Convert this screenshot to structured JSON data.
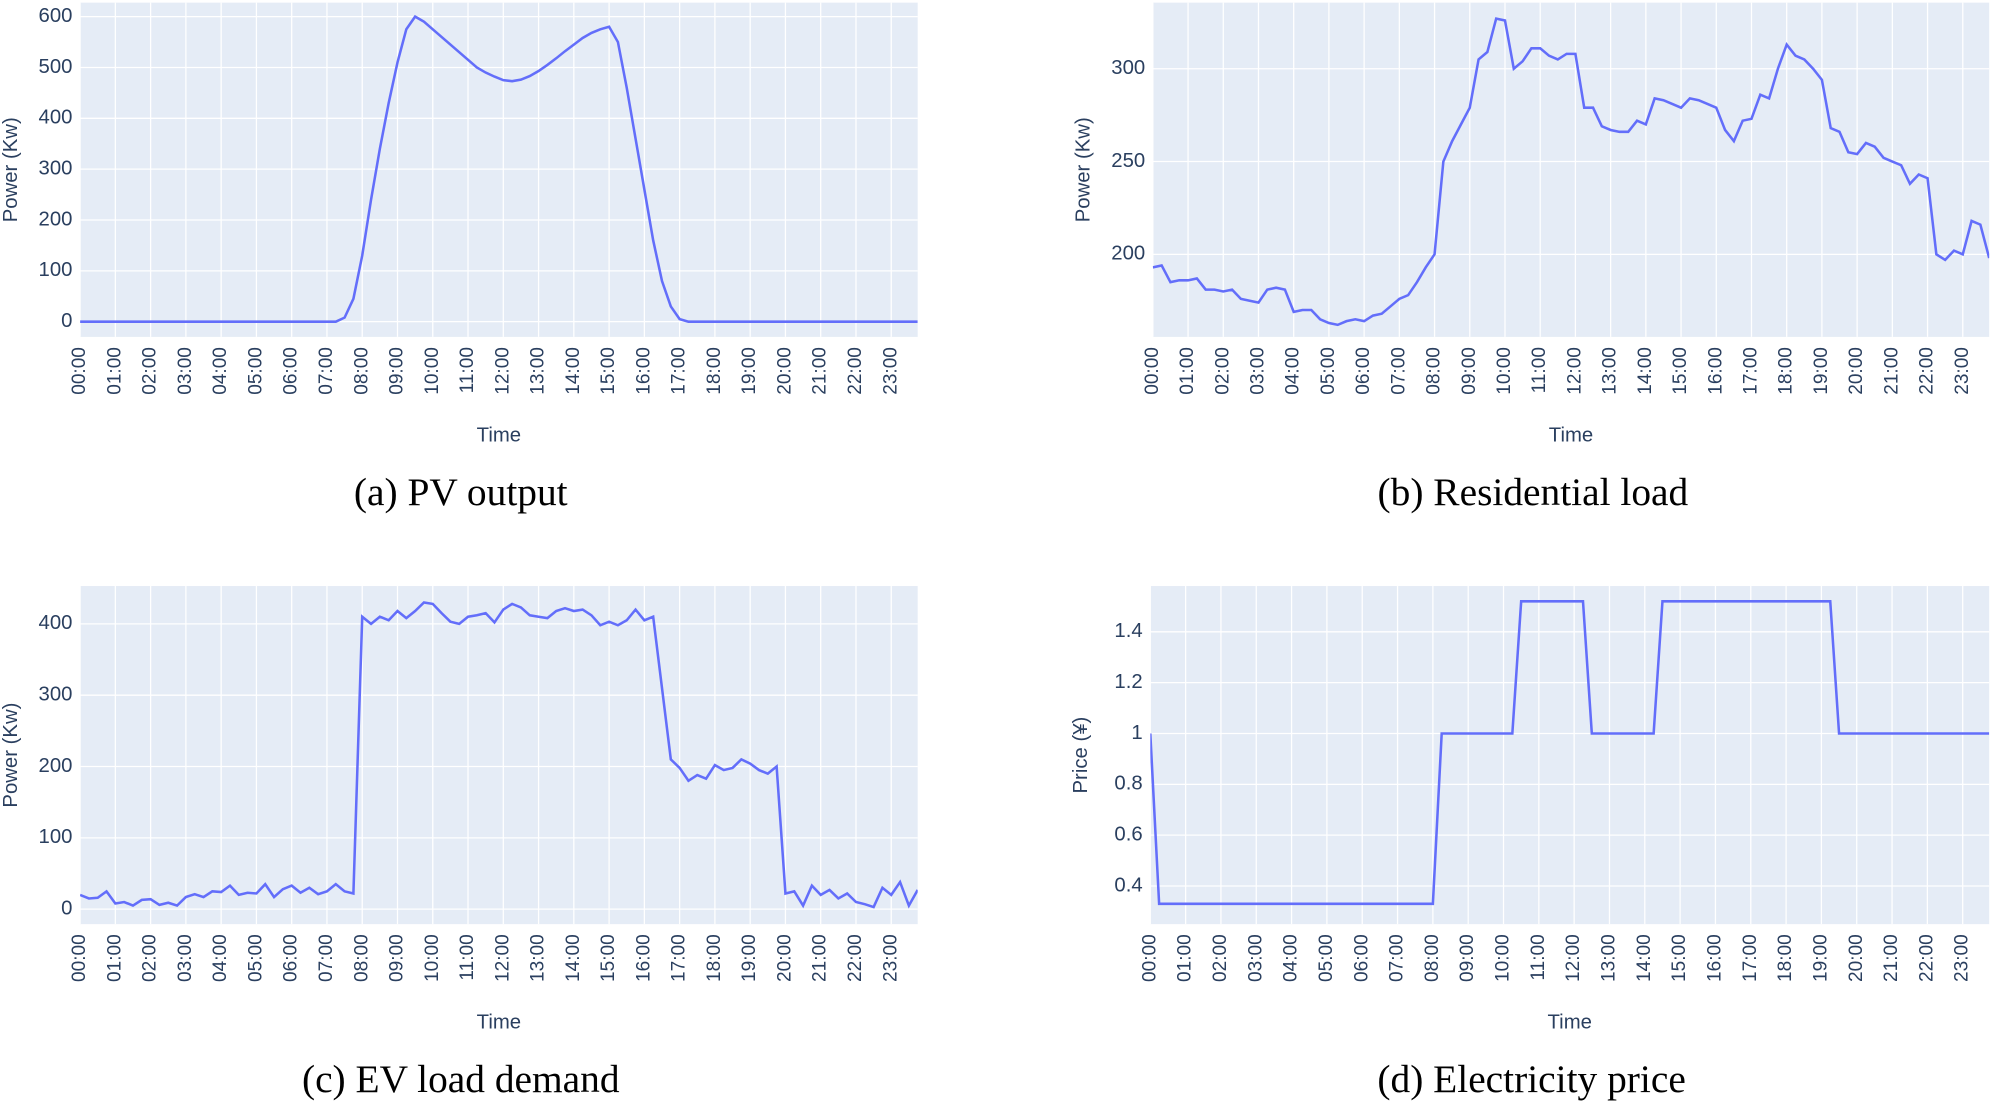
{
  "chart_data": [
    {
      "type": "line",
      "title": "(a) PV output",
      "xlabel": "Time",
      "ylabel": "Power (Kw)",
      "color": "#636efa",
      "x": [
        0,
        0.25,
        0.5,
        0.75,
        1,
        1.25,
        1.5,
        1.75,
        2,
        2.25,
        2.5,
        2.75,
        3,
        3.25,
        3.5,
        3.75,
        4,
        4.25,
        4.5,
        4.75,
        5,
        5.25,
        5.5,
        5.75,
        6,
        6.25,
        6.5,
        6.75,
        7,
        7.25,
        7.5,
        7.75,
        8,
        8.25,
        8.5,
        8.75,
        9,
        9.25,
        9.5,
        9.75,
        10,
        10.25,
        10.5,
        10.75,
        11,
        11.25,
        11.5,
        11.75,
        12,
        12.25,
        12.5,
        12.75,
        13,
        13.25,
        13.5,
        13.75,
        14,
        14.25,
        14.5,
        14.75,
        15,
        15.25,
        15.5,
        15.75,
        16,
        16.25,
        16.5,
        16.75,
        17,
        17.25,
        17.5,
        17.75,
        18,
        18.25,
        18.5,
        18.75,
        19,
        19.25,
        19.5,
        19.75,
        20,
        20.25,
        20.5,
        20.75,
        21,
        21.25,
        21.5,
        21.75,
        22,
        22.25,
        22.5,
        22.75,
        23,
        23.25,
        23.5,
        23.75
      ],
      "values": [
        0,
        0,
        0,
        0,
        0,
        0,
        0,
        0,
        0,
        0,
        0,
        0,
        0,
        0,
        0,
        0,
        0,
        0,
        0,
        0,
        0,
        0,
        0,
        0,
        0,
        0,
        0,
        0,
        0,
        0,
        8,
        45,
        130,
        240,
        340,
        430,
        510,
        575,
        600,
        590,
        575,
        560,
        545,
        530,
        515,
        500,
        490,
        482,
        475,
        473,
        476,
        483,
        493,
        505,
        518,
        532,
        545,
        558,
        568,
        575,
        580,
        550,
        460,
        360,
        260,
        160,
        80,
        30,
        5,
        0,
        0,
        0,
        0,
        0,
        0,
        0,
        0,
        0,
        0,
        0,
        0,
        0,
        0,
        0,
        0,
        0,
        0,
        0,
        0,
        0,
        0,
        0,
        0,
        0,
        0,
        0
      ],
      "xlim": [
        0,
        23.75
      ],
      "xticks": [
        {
          "value": 0,
          "label": "00:00"
        },
        {
          "value": 1,
          "label": "01:00"
        },
        {
          "value": 2,
          "label": "02:00"
        },
        {
          "value": 3,
          "label": "03:00"
        },
        {
          "value": 4,
          "label": "04:00"
        },
        {
          "value": 5,
          "label": "05:00"
        },
        {
          "value": 6,
          "label": "06:00"
        },
        {
          "value": 7,
          "label": "07:00"
        },
        {
          "value": 8,
          "label": "08:00"
        },
        {
          "value": 9,
          "label": "09:00"
        },
        {
          "value": 10,
          "label": "10:00"
        },
        {
          "value": 11,
          "label": "11:00"
        },
        {
          "value": 12,
          "label": "12:00"
        },
        {
          "value": 13,
          "label": "13:00"
        },
        {
          "value": 14,
          "label": "14:00"
        },
        {
          "value": 15,
          "label": "15:00"
        },
        {
          "value": 16,
          "label": "16:00"
        },
        {
          "value": 17,
          "label": "17:00"
        },
        {
          "value": 18,
          "label": "18:00"
        },
        {
          "value": 19,
          "label": "19:00"
        },
        {
          "value": 20,
          "label": "20:00"
        },
        {
          "value": 21,
          "label": "21:00"
        },
        {
          "value": 22,
          "label": "22:00"
        },
        {
          "value": 23,
          "label": "23:00"
        }
      ],
      "ylim": [
        -30,
        627.5
      ],
      "yticks": [
        0,
        100,
        200,
        300,
        400,
        500,
        600
      ],
      "grid": true
    },
    {
      "type": "line",
      "title": "(b) Residential load",
      "xlabel": "Time",
      "ylabel": "Power (Kw)",
      "color": "#636efa",
      "x": [
        0,
        0.25,
        0.5,
        0.75,
        1,
        1.25,
        1.5,
        1.75,
        2,
        2.25,
        2.5,
        2.75,
        3,
        3.25,
        3.5,
        3.75,
        4,
        4.25,
        4.5,
        4.75,
        5,
        5.25,
        5.5,
        5.75,
        6,
        6.25,
        6.5,
        6.75,
        7,
        7.25,
        7.5,
        7.75,
        8,
        8.25,
        8.5,
        8.75,
        9,
        9.25,
        9.5,
        9.75,
        10,
        10.25,
        10.5,
        10.75,
        11,
        11.25,
        11.5,
        11.75,
        12,
        12.25,
        12.5,
        12.75,
        13,
        13.25,
        13.5,
        13.75,
        14,
        14.25,
        14.5,
        14.75,
        15,
        15.25,
        15.5,
        15.75,
        16,
        16.25,
        16.5,
        16.75,
        17,
        17.25,
        17.5,
        17.75,
        18,
        18.25,
        18.5,
        18.75,
        19,
        19.25,
        19.5,
        19.75,
        20,
        20.25,
        20.5,
        20.75,
        21,
        21.25,
        21.5,
        21.75,
        22,
        22.25,
        22.5,
        22.75,
        23,
        23.25,
        23.5,
        23.75
      ],
      "values": [
        193,
        194,
        185,
        186,
        186,
        187,
        181,
        181,
        180,
        181,
        176,
        175,
        174,
        181,
        182,
        181,
        169,
        170,
        170,
        165,
        163,
        162,
        164,
        165,
        164,
        167,
        168,
        172,
        176,
        178,
        185,
        193,
        200,
        250,
        261,
        270,
        279,
        305,
        309,
        327,
        326,
        300,
        304,
        311,
        311,
        307,
        305,
        308,
        308,
        279,
        279,
        269,
        267,
        266,
        266,
        272,
        270,
        284,
        283,
        281,
        279,
        284,
        283,
        281,
        279,
        267,
        261,
        272,
        273,
        286,
        284,
        300,
        313,
        307,
        305,
        300,
        294,
        268,
        266,
        255,
        254,
        260,
        258,
        252,
        250,
        248,
        238,
        243,
        241,
        200,
        197,
        202,
        200,
        218,
        216,
        198
      ],
      "xlim": [
        0,
        23.75
      ],
      "xticks": [
        {
          "value": 0,
          "label": "00:00"
        },
        {
          "value": 1,
          "label": "01:00"
        },
        {
          "value": 2,
          "label": "02:00"
        },
        {
          "value": 3,
          "label": "03:00"
        },
        {
          "value": 4,
          "label": "04:00"
        },
        {
          "value": 5,
          "label": "05:00"
        },
        {
          "value": 6,
          "label": "06:00"
        },
        {
          "value": 7,
          "label": "07:00"
        },
        {
          "value": 8,
          "label": "08:00"
        },
        {
          "value": 9,
          "label": "09:00"
        },
        {
          "value": 10,
          "label": "10:00"
        },
        {
          "value": 11,
          "label": "11:00"
        },
        {
          "value": 12,
          "label": "12:00"
        },
        {
          "value": 13,
          "label": "13:00"
        },
        {
          "value": 14,
          "label": "14:00"
        },
        {
          "value": 15,
          "label": "15:00"
        },
        {
          "value": 16,
          "label": "16:00"
        },
        {
          "value": 17,
          "label": "17:00"
        },
        {
          "value": 18,
          "label": "18:00"
        },
        {
          "value": 19,
          "label": "19:00"
        },
        {
          "value": 20,
          "label": "20:00"
        },
        {
          "value": 21,
          "label": "21:00"
        },
        {
          "value": 22,
          "label": "22:00"
        },
        {
          "value": 23,
          "label": "23:00"
        }
      ],
      "ylim": [
        155.5,
        335.6
      ],
      "yticks": [
        200,
        250,
        300
      ],
      "grid": true
    },
    {
      "type": "line",
      "title": "(c) EV load demand",
      "xlabel": "Time",
      "ylabel": "Power (Kw)",
      "color": "#636efa",
      "x": [
        0,
        0.25,
        0.5,
        0.75,
        1,
        1.25,
        1.5,
        1.75,
        2,
        2.25,
        2.5,
        2.75,
        3,
        3.25,
        3.5,
        3.75,
        4,
        4.25,
        4.5,
        4.75,
        5,
        5.25,
        5.5,
        5.75,
        6,
        6.25,
        6.5,
        6.75,
        7,
        7.25,
        7.5,
        7.75,
        8,
        8.25,
        8.5,
        8.75,
        9,
        9.25,
        9.5,
        9.75,
        10,
        10.25,
        10.5,
        10.75,
        11,
        11.25,
        11.5,
        11.75,
        12,
        12.25,
        12.5,
        12.75,
        13,
        13.25,
        13.5,
        13.75,
        14,
        14.25,
        14.5,
        14.75,
        15,
        15.25,
        15.5,
        15.75,
        16,
        16.25,
        16.5,
        16.75,
        17,
        17.25,
        17.5,
        17.75,
        18,
        18.25,
        18.5,
        18.75,
        19,
        19.25,
        19.5,
        19.75,
        20,
        20.25,
        20.5,
        20.75,
        21,
        21.25,
        21.5,
        21.75,
        22,
        22.25,
        22.5,
        22.75,
        23,
        23.25,
        23.5,
        23.75
      ],
      "values": [
        20,
        15,
        16,
        25,
        8,
        10,
        5,
        13,
        14,
        6,
        9,
        5,
        17,
        21,
        17,
        25,
        24,
        33,
        20,
        23,
        22,
        35,
        17,
        28,
        33,
        23,
        30,
        21,
        25,
        35,
        25,
        22,
        410,
        400,
        410,
        405,
        418,
        408,
        418,
        430,
        428,
        415,
        403,
        400,
        410,
        412,
        415,
        402,
        420,
        428,
        423,
        412,
        410,
        408,
        418,
        422,
        418,
        420,
        412,
        398,
        403,
        398,
        405,
        420,
        405,
        410,
        310,
        210,
        198,
        180,
        188,
        183,
        202,
        195,
        198,
        210,
        204,
        195,
        190,
        200,
        22,
        25,
        5,
        33,
        20,
        27,
        15,
        22,
        10,
        7,
        3,
        30,
        20,
        38,
        5,
        27
      ],
      "xlim": [
        0,
        23.75
      ],
      "xticks": [
        {
          "value": 0,
          "label": "00:00"
        },
        {
          "value": 1,
          "label": "01:00"
        },
        {
          "value": 2,
          "label": "02:00"
        },
        {
          "value": 3,
          "label": "03:00"
        },
        {
          "value": 4,
          "label": "04:00"
        },
        {
          "value": 5,
          "label": "05:00"
        },
        {
          "value": 6,
          "label": "06:00"
        },
        {
          "value": 7,
          "label": "07:00"
        },
        {
          "value": 8,
          "label": "08:00"
        },
        {
          "value": 9,
          "label": "09:00"
        },
        {
          "value": 10,
          "label": "10:00"
        },
        {
          "value": 11,
          "label": "11:00"
        },
        {
          "value": 12,
          "label": "12:00"
        },
        {
          "value": 13,
          "label": "13:00"
        },
        {
          "value": 14,
          "label": "14:00"
        },
        {
          "value": 15,
          "label": "15:00"
        },
        {
          "value": 16,
          "label": "16:00"
        },
        {
          "value": 17,
          "label": "17:00"
        },
        {
          "value": 18,
          "label": "18:00"
        },
        {
          "value": 19,
          "label": "19:00"
        },
        {
          "value": 20,
          "label": "20:00"
        },
        {
          "value": 21,
          "label": "21:00"
        },
        {
          "value": 22,
          "label": "22:00"
        },
        {
          "value": 23,
          "label": "23:00"
        }
      ],
      "ylim": [
        -21,
        453
      ],
      "yticks": [
        0,
        100,
        200,
        300,
        400
      ],
      "grid": true
    },
    {
      "type": "line",
      "title": "(d) Electricity price",
      "xlabel": "Time",
      "ylabel": "Price (¥)",
      "color": "#636efa",
      "x": [
        0,
        0.25,
        0.5,
        0.75,
        1,
        1.25,
        1.5,
        1.75,
        2,
        2.25,
        2.5,
        2.75,
        3,
        3.25,
        3.5,
        3.75,
        4,
        4.25,
        4.5,
        4.75,
        5,
        5.25,
        5.5,
        5.75,
        6,
        6.25,
        6.5,
        6.75,
        7,
        7.25,
        7.5,
        7.75,
        8,
        8.25,
        8.5,
        8.75,
        9,
        9.25,
        9.5,
        9.75,
        10,
        10.25,
        10.5,
        10.75,
        11,
        11.25,
        11.5,
        11.75,
        12,
        12.25,
        12.5,
        12.75,
        13,
        13.25,
        13.5,
        13.75,
        14,
        14.25,
        14.5,
        14.75,
        15,
        15.25,
        15.5,
        15.75,
        16,
        16.25,
        16.5,
        16.75,
        17,
        17.25,
        17.5,
        17.75,
        18,
        18.25,
        18.5,
        18.75,
        19,
        19.25,
        19.5,
        19.75,
        20,
        20.25,
        20.5,
        20.75,
        21,
        21.25,
        21.5,
        21.75,
        22,
        22.25,
        22.5,
        22.75,
        23,
        23.25,
        23.5,
        23.75
      ],
      "values": [
        1,
        0.33,
        0.33,
        0.33,
        0.33,
        0.33,
        0.33,
        0.33,
        0.33,
        0.33,
        0.33,
        0.33,
        0.33,
        0.33,
        0.33,
        0.33,
        0.33,
        0.33,
        0.33,
        0.33,
        0.33,
        0.33,
        0.33,
        0.33,
        0.33,
        0.33,
        0.33,
        0.33,
        0.33,
        0.33,
        0.33,
        0.33,
        0.33,
        1,
        1,
        1,
        1,
        1,
        1,
        1,
        1,
        1,
        1.52,
        1.52,
        1.52,
        1.52,
        1.52,
        1.52,
        1.52,
        1.52,
        1,
        1,
        1,
        1,
        1,
        1,
        1,
        1,
        1.52,
        1.52,
        1.52,
        1.52,
        1.52,
        1.52,
        1.52,
        1.52,
        1.52,
        1.52,
        1.52,
        1.52,
        1.52,
        1.52,
        1.52,
        1.52,
        1.52,
        1.52,
        1.52,
        1.52,
        1,
        1,
        1,
        1,
        1,
        1,
        1,
        1,
        1,
        1,
        1,
        1,
        1,
        1,
        1,
        1,
        1,
        1
      ],
      "xlim": [
        0,
        23.75
      ],
      "xticks": [
        {
          "value": 0,
          "label": "00:00"
        },
        {
          "value": 1,
          "label": "01:00"
        },
        {
          "value": 2,
          "label": "02:00"
        },
        {
          "value": 3,
          "label": "03:00"
        },
        {
          "value": 4,
          "label": "04:00"
        },
        {
          "value": 5,
          "label": "05:00"
        },
        {
          "value": 6,
          "label": "06:00"
        },
        {
          "value": 7,
          "label": "07:00"
        },
        {
          "value": 8,
          "label": "08:00"
        },
        {
          "value": 9,
          "label": "09:00"
        },
        {
          "value": 10,
          "label": "10:00"
        },
        {
          "value": 11,
          "label": "11:00"
        },
        {
          "value": 12,
          "label": "12:00"
        },
        {
          "value": 13,
          "label": "13:00"
        },
        {
          "value": 14,
          "label": "14:00"
        },
        {
          "value": 15,
          "label": "15:00"
        },
        {
          "value": 16,
          "label": "16:00"
        },
        {
          "value": 17,
          "label": "17:00"
        },
        {
          "value": 18,
          "label": "18:00"
        },
        {
          "value": 19,
          "label": "19:00"
        },
        {
          "value": 20,
          "label": "20:00"
        },
        {
          "value": 21,
          "label": "21:00"
        },
        {
          "value": 22,
          "label": "22:00"
        },
        {
          "value": 23,
          "label": "23:00"
        }
      ],
      "ylim": [
        0.25,
        1.58
      ],
      "yticks": [
        0.4,
        0.6,
        0.8,
        1,
        1.2,
        1.4
      ],
      "grid": true
    }
  ]
}
